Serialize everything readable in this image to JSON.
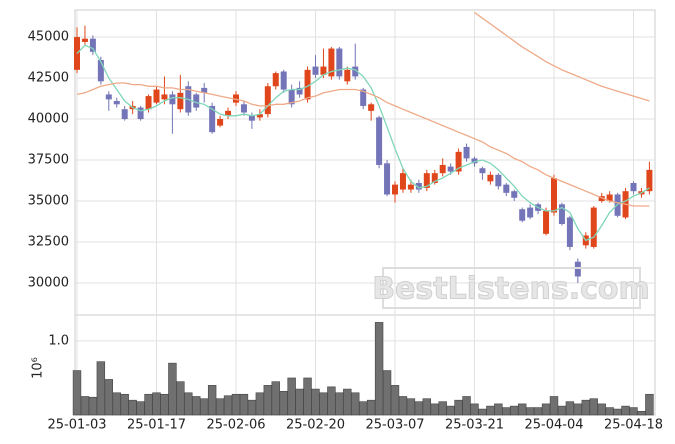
{
  "chart_data": [
    {
      "type": "candlestick",
      "categories": [
        "25-01-03",
        null,
        null,
        null,
        null,
        null,
        null,
        null,
        null,
        null,
        "25-01-17",
        null,
        null,
        null,
        null,
        null,
        null,
        null,
        null,
        null,
        "25-02-06",
        null,
        null,
        null,
        null,
        null,
        null,
        null,
        null,
        null,
        "25-02-20",
        null,
        null,
        null,
        null,
        null,
        null,
        null,
        null,
        null,
        "25-03-07",
        null,
        null,
        null,
        null,
        null,
        null,
        null,
        null,
        null,
        "25-03-21",
        null,
        null,
        null,
        null,
        null,
        null,
        null,
        null,
        null,
        "25-04-04",
        null,
        null,
        null,
        null,
        null,
        null,
        null,
        null,
        null,
        "25-04-18",
        null,
        null
      ],
      "open": [
        43000,
        44700,
        44900,
        43600,
        41500,
        41100,
        40600,
        40600,
        40700,
        40600,
        41000,
        41200,
        41500,
        40600,
        42000,
        41500,
        41900,
        40800,
        39600,
        40200,
        41000,
        40900,
        40200,
        40100,
        40300,
        42000,
        42900,
        41800,
        41900,
        41200,
        43200,
        42700,
        42600,
        44300,
        42300,
        43200,
        41800,
        40500,
        40100,
        37300,
        35400,
        35700,
        35700,
        36100,
        35800,
        36100,
        36700,
        37100,
        36800,
        38300,
        37600,
        37000,
        36200,
        36600,
        36000,
        35600,
        34500,
        34600,
        34800,
        33000,
        34300,
        34800,
        34000,
        31300,
        32300,
        32200,
        35000,
        35000,
        35400,
        34000,
        36100,
        35400,
        35600
      ],
      "high": [
        45600,
        45700,
        45100,
        43800,
        41700,
        41300,
        40800,
        41100,
        40800,
        41500,
        42000,
        42600,
        41700,
        42700,
        42300,
        41600,
        42200,
        41000,
        40200,
        40700,
        41700,
        41100,
        40400,
        40600,
        42200,
        42900,
        43000,
        42100,
        42300,
        43200,
        43900,
        44300,
        44400,
        44400,
        43200,
        44600,
        41900,
        41000,
        40200,
        37500,
        36200,
        37000,
        36300,
        36300,
        36900,
        36900,
        37600,
        37300,
        38200,
        38500,
        37700,
        37100,
        36800,
        36700,
        36100,
        35700,
        34600,
        34800,
        34900,
        34600,
        36600,
        34900,
        34100,
        31500,
        33100,
        34700,
        35500,
        35600,
        35500,
        35800,
        36200,
        35800,
        37400
      ],
      "low": [
        42800,
        44500,
        43900,
        42100,
        40500,
        40700,
        39900,
        40300,
        39900,
        40400,
        40900,
        40900,
        39100,
        40400,
        40200,
        40500,
        41000,
        39100,
        39500,
        40000,
        40800,
        40200,
        39400,
        39900,
        40100,
        41800,
        41600,
        40700,
        41300,
        41000,
        42500,
        42500,
        42400,
        42400,
        42100,
        42400,
        40600,
        39900,
        37000,
        35300,
        34900,
        35500,
        35500,
        35500,
        35600,
        36000,
        36500,
        36600,
        36600,
        37400,
        37100,
        36300,
        36000,
        35700,
        35300,
        35000,
        33700,
        33900,
        34200,
        32900,
        34100,
        33500,
        32000,
        30000,
        32100,
        32100,
        34900,
        34900,
        34000,
        33900,
        35400,
        35200,
        35400
      ],
      "close": [
        45000,
        44900,
        44100,
        42300,
        41200,
        40900,
        40000,
        40800,
        40000,
        41400,
        41800,
        41500,
        40900,
        41600,
        40400,
        40700,
        41600,
        39200,
        40000,
        40500,
        41500,
        40400,
        39900,
        40300,
        42000,
        42800,
        41800,
        40900,
        41500,
        43000,
        42700,
        43200,
        44300,
        42600,
        43000,
        42600,
        40800,
        40900,
        37200,
        35400,
        36000,
        36700,
        36000,
        35700,
        36700,
        36700,
        37200,
        36800,
        38000,
        37600,
        37300,
        36700,
        36600,
        35900,
        35500,
        35200,
        33800,
        34000,
        34400,
        34400,
        36400,
        33600,
        32200,
        30400,
        32900,
        34600,
        35300,
        35400,
        34100,
        35600,
        35600,
        35600,
        36900
      ],
      "up_color": "#e0461b",
      "down_color": "#7474b8",
      "series": [
        {
          "color": "#7fd6b8",
          "values": [
            44000,
            44500,
            44300,
            43500,
            42500,
            41800,
            41100,
            40700,
            40500,
            40600,
            40800,
            41100,
            41300,
            41300,
            41200,
            41000,
            40900,
            40600,
            40300,
            40200,
            40200,
            40300,
            40200,
            40300,
            40800,
            41300,
            41700,
            41800,
            41800,
            42000,
            42300,
            42700,
            42900,
            43000,
            43100,
            43000,
            42600,
            41900,
            40800,
            39500,
            38200,
            37000,
            36200,
            35800,
            35900,
            36200,
            36400,
            36700,
            37000,
            37200,
            37400,
            37500,
            37300,
            36900,
            36400,
            35900,
            35300,
            34900,
            34600,
            34400,
            34400,
            34600,
            34300,
            33300,
            32600,
            32800,
            33500,
            34300,
            34800,
            35000,
            35300,
            35500,
            35800
          ]
        },
        {
          "color": "#eeaa88",
          "values": [
            41500,
            41600,
            41800,
            42000,
            42100,
            42200,
            42200,
            42100,
            42100,
            42000,
            42000,
            41900,
            41900,
            41800,
            41800,
            41700,
            41600,
            41500,
            41400,
            41300,
            41200,
            41100,
            40900,
            40800,
            40800,
            40900,
            40900,
            41000,
            41100,
            41300,
            41400,
            41600,
            41700,
            41800,
            41800,
            41800,
            41700,
            41500,
            41300,
            41000,
            40800,
            40600,
            40400,
            40200,
            40000,
            39800,
            39600,
            39400,
            39200,
            39000,
            38800,
            38600,
            38300,
            38100,
            37900,
            37600,
            37400,
            37100,
            36900,
            36600,
            36400,
            36200,
            36000,
            35800,
            35600,
            35400,
            35200,
            35000,
            34900,
            34800,
            34700,
            34700,
            34700
          ]
        },
        {
          "color": "#eeaa88",
          "values": [
            null,
            null,
            null,
            null,
            null,
            null,
            null,
            null,
            null,
            null,
            null,
            null,
            null,
            null,
            null,
            null,
            null,
            null,
            null,
            null,
            null,
            null,
            null,
            null,
            null,
            null,
            null,
            null,
            null,
            null,
            null,
            null,
            null,
            null,
            null,
            null,
            null,
            null,
            null,
            null,
            null,
            null,
            null,
            null,
            null,
            null,
            null,
            null,
            null,
            null,
            46500,
            46150,
            45800,
            45450,
            45100,
            44750,
            44400,
            44100,
            43800,
            43500,
            43250,
            43000,
            42800,
            42600,
            42400,
            42200,
            42000,
            41850,
            41700,
            41550,
            41400,
            41250,
            41100
          ]
        }
      ],
      "ylim": [
        28050,
        46650
      ],
      "yticks": [
        30000,
        32500,
        35000,
        37500,
        40000,
        42500,
        45000
      ],
      "grid": true,
      "watermark": "BestListens.com"
    },
    {
      "type": "bar",
      "ylabel": "10⁶",
      "color": "#707070",
      "values": [
        0.6,
        0.25,
        0.24,
        0.72,
        0.48,
        0.3,
        0.28,
        0.2,
        0.18,
        0.28,
        0.3,
        0.28,
        0.7,
        0.45,
        0.3,
        0.25,
        0.22,
        0.4,
        0.22,
        0.26,
        0.28,
        0.28,
        0.2,
        0.3,
        0.4,
        0.45,
        0.32,
        0.5,
        0.35,
        0.5,
        0.35,
        0.3,
        0.38,
        0.3,
        0.35,
        0.3,
        0.18,
        0.2,
        1.25,
        0.6,
        0.4,
        0.25,
        0.22,
        0.18,
        0.22,
        0.15,
        0.18,
        0.12,
        0.2,
        0.25,
        0.15,
        0.08,
        0.12,
        0.15,
        0.1,
        0.12,
        0.15,
        0.1,
        0.1,
        0.15,
        0.25,
        0.12,
        0.18,
        0.15,
        0.2,
        0.22,
        0.15,
        0.1,
        0.08,
        0.12,
        0.1,
        0.05,
        0.28
      ],
      "ylim": [
        0,
        1.35
      ],
      "yticks": [
        {
          "value": 1,
          "label": "1.0"
        }
      ],
      "grid": true
    }
  ]
}
